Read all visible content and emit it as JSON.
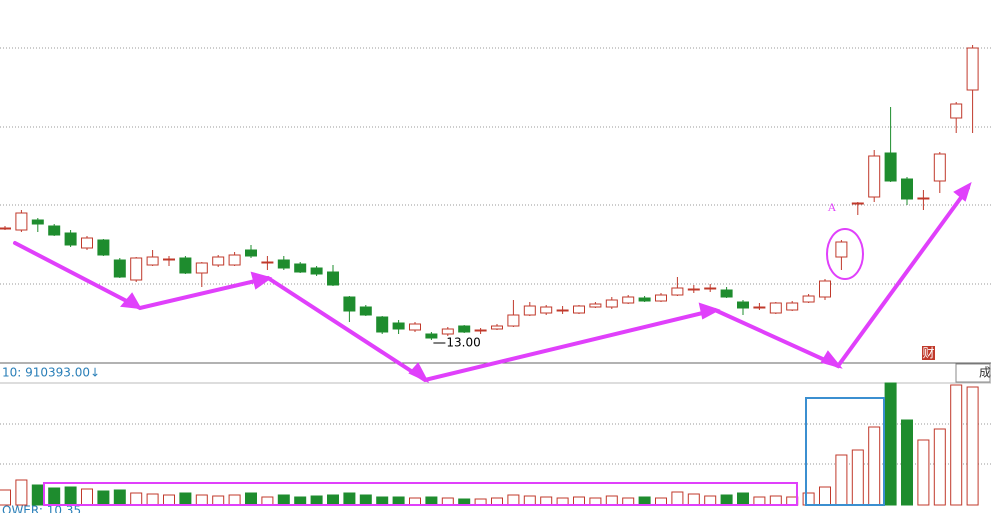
{
  "chart_data": {
    "type": "candlestick",
    "open": [
      14.12,
      14.1,
      14.2,
      14.14,
      14.07,
      13.92,
      14.0,
      13.8,
      13.6,
      13.75,
      13.81,
      13.82,
      13.67,
      13.75,
      13.75,
      13.9,
      13.78,
      13.8,
      13.76,
      13.72,
      13.68,
      13.43,
      13.33,
      13.23,
      13.17,
      13.1,
      13.06,
      13.06,
      13.14,
      13.1,
      13.11,
      13.14,
      13.25,
      13.27,
      13.3,
      13.27,
      13.33,
      13.33,
      13.37,
      13.42,
      13.39,
      13.45,
      13.51,
      13.52,
      13.5,
      13.38,
      13.33,
      13.27,
      13.3,
      13.38,
      13.43,
      13.83,
      14.37,
      14.43,
      14.87,
      14.61,
      14.42,
      14.59,
      15.22,
      15.5
    ],
    "high": [
      14.14,
      14.3,
      14.22,
      14.16,
      14.1,
      14.04,
      14.01,
      13.82,
      13.83,
      13.9,
      13.84,
      13.84,
      13.78,
      13.85,
      13.88,
      13.95,
      13.84,
      13.84,
      13.78,
      13.74,
      13.75,
      13.44,
      13.35,
      13.24,
      13.2,
      13.18,
      13.08,
      13.13,
      13.15,
      13.12,
      13.16,
      13.4,
      13.38,
      13.35,
      13.34,
      13.35,
      13.38,
      13.43,
      13.45,
      13.44,
      13.47,
      13.63,
      13.55,
      13.56,
      13.53,
      13.4,
      13.37,
      13.38,
      13.39,
      13.46,
      13.61,
      14.0,
      14.38,
      14.9,
      15.33,
      14.63,
      14.5,
      14.88,
      15.38,
      15.95
    ],
    "low": [
      14.1,
      14.08,
      14.08,
      14.04,
      13.93,
      13.9,
      13.84,
      13.62,
      13.58,
      13.74,
      13.74,
      13.66,
      13.53,
      13.73,
      13.74,
      13.82,
      13.7,
      13.7,
      13.67,
      13.64,
      13.54,
      13.18,
      13.24,
      13.06,
      13.06,
      13.08,
      13.0,
      13.04,
      13.07,
      13.06,
      13.1,
      13.13,
      13.24,
      13.25,
      13.26,
      13.26,
      13.32,
      13.31,
      13.36,
      13.38,
      13.38,
      13.44,
      13.47,
      13.48,
      13.42,
      13.25,
      13.3,
      13.26,
      13.29,
      13.37,
      13.4,
      13.7,
      14.25,
      14.38,
      14.58,
      14.35,
      14.3,
      14.47,
      15.07,
      15.07
    ],
    "close": [
      14.12,
      14.27,
      14.16,
      14.05,
      13.95,
      14.02,
      13.85,
      13.63,
      13.82,
      13.83,
      13.81,
      13.67,
      13.77,
      13.83,
      13.85,
      13.84,
      13.78,
      13.72,
      13.68,
      13.66,
      13.55,
      13.29,
      13.25,
      13.08,
      13.11,
      13.16,
      13.02,
      13.11,
      13.08,
      13.1,
      13.14,
      13.25,
      13.34,
      13.33,
      13.3,
      13.34,
      13.36,
      13.4,
      13.43,
      13.39,
      13.45,
      13.52,
      13.51,
      13.52,
      13.43,
      13.32,
      13.33,
      13.37,
      13.37,
      13.44,
      13.59,
      13.98,
      14.37,
      14.84,
      14.59,
      14.41,
      14.42,
      14.86,
      15.36,
      15.92
    ],
    "ylim": [
      12.77,
      16.4
    ],
    "up_color": "#c0392b",
    "down_color": "#1e8c2e",
    "low_label": "13.00",
    "annotation": "A",
    "badge_cai": "财",
    "badge_cheng": "成",
    "volume": {
      "values": [
        150000,
        250000,
        200000,
        170000,
        180000,
        160000,
        140000,
        150000,
        120000,
        110000,
        100000,
        120000,
        100000,
        90000,
        100000,
        120000,
        80000,
        100000,
        80000,
        90000,
        100000,
        120000,
        100000,
        80000,
        80000,
        70000,
        80000,
        70000,
        60000,
        60000,
        70000,
        100000,
        90000,
        80000,
        70000,
        80000,
        70000,
        90000,
        70000,
        80000,
        70000,
        130000,
        110000,
        90000,
        100000,
        120000,
        80000,
        90000,
        80000,
        120000,
        180000,
        500000,
        550000,
        780000,
        1220000,
        850000,
        650000,
        760000,
        1200000,
        1180000
      ],
      "ylim": [
        0,
        1220000
      ],
      "ma10_label": "10: 910393.00↓",
      "footer_label": "OWER: 10.35"
    }
  }
}
